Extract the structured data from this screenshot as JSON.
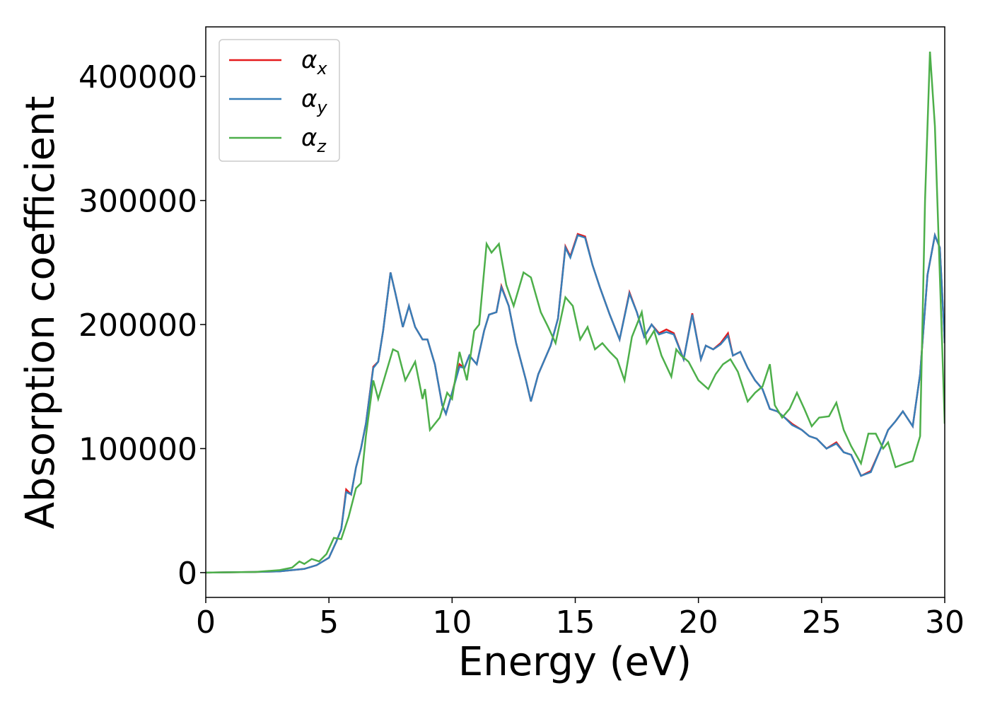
{
  "chart_data": {
    "type": "line",
    "xlabel": "Energy (eV)",
    "ylabel": "Absorption coefficient",
    "xlim": [
      0,
      30
    ],
    "ylim": [
      -20000,
      440000
    ],
    "xticks": [
      0,
      5,
      10,
      15,
      20,
      25,
      30
    ],
    "yticks": [
      0,
      100000,
      200000,
      300000,
      400000
    ],
    "legend": "upper left",
    "series": [
      {
        "name": "αx",
        "color": "#e41a1c",
        "x": [
          0,
          2,
          3,
          4,
          4.5,
          5,
          5.3,
          5.5,
          5.7,
          5.9,
          6.1,
          6.3,
          6.5,
          6.8,
          7,
          7.2,
          7.5,
          7.7,
          8,
          8.25,
          8.5,
          8.8,
          9,
          9.3,
          9.6,
          9.75,
          10,
          10.3,
          10.5,
          10.7,
          11,
          11.3,
          11.5,
          11.8,
          12,
          12.3,
          12.6,
          13,
          13.2,
          13.5,
          14,
          14.3,
          14.6,
          14.8,
          15.1,
          15.4,
          15.7,
          16,
          16.4,
          16.8,
          17.2,
          17.5,
          17.8,
          18.1,
          18.4,
          18.7,
          19,
          19.4,
          19.75,
          20.1,
          20.3,
          20.6,
          20.9,
          21.2,
          21.4,
          21.7,
          22,
          22.3,
          22.6,
          22.9,
          23.2,
          23.5,
          23.8,
          24.2,
          24.5,
          24.8,
          25.2,
          25.6,
          25.9,
          26.2,
          26.6,
          27,
          27.4,
          27.7,
          28,
          28.3,
          28.7,
          29,
          29.3,
          29.6,
          29.8,
          30
        ],
        "values": [
          0,
          500,
          1000,
          3000,
          6000,
          12000,
          25000,
          35000,
          67000,
          63000,
          85000,
          100000,
          120000,
          166000,
          170000,
          195000,
          242000,
          225000,
          198000,
          215000,
          198000,
          188000,
          188000,
          168000,
          135000,
          128000,
          145000,
          168000,
          165000,
          175000,
          168000,
          195000,
          208000,
          210000,
          231000,
          215000,
          185000,
          155000,
          138000,
          160000,
          183000,
          205000,
          263000,
          255000,
          273000,
          271000,
          248000,
          230000,
          208000,
          188000,
          226000,
          210000,
          190000,
          200000,
          193000,
          196000,
          193000,
          172000,
          209000,
          172000,
          183000,
          180000,
          185000,
          193000,
          175000,
          178000,
          165000,
          155000,
          148000,
          132000,
          130000,
          125000,
          120000,
          115000,
          110000,
          108000,
          100000,
          105000,
          97000,
          95000,
          78000,
          82000,
          100000,
          115000,
          122000,
          130000,
          118000,
          160000,
          240000,
          272000,
          262000,
          185000
        ]
      },
      {
        "name": "αy",
        "color": "#377eb8",
        "x": [
          0,
          2,
          3,
          4,
          4.5,
          5,
          5.3,
          5.5,
          5.7,
          5.9,
          6.1,
          6.3,
          6.5,
          6.8,
          7,
          7.2,
          7.5,
          7.7,
          8,
          8.25,
          8.5,
          8.8,
          9,
          9.3,
          9.6,
          9.75,
          10,
          10.3,
          10.5,
          10.7,
          11,
          11.3,
          11.5,
          11.8,
          12,
          12.3,
          12.6,
          13,
          13.2,
          13.5,
          14,
          14.3,
          14.6,
          14.8,
          15.1,
          15.4,
          15.7,
          16,
          16.4,
          16.8,
          17.2,
          17.5,
          17.8,
          18.1,
          18.4,
          18.7,
          19,
          19.4,
          19.75,
          20.1,
          20.3,
          20.6,
          20.9,
          21.2,
          21.4,
          21.7,
          22,
          22.3,
          22.6,
          22.9,
          23.2,
          23.5,
          23.8,
          24.2,
          24.5,
          24.8,
          25.2,
          25.6,
          25.9,
          26.2,
          26.6,
          27,
          27.4,
          27.7,
          28,
          28.3,
          28.7,
          29,
          29.3,
          29.6,
          29.8,
          30
        ],
        "values": [
          0,
          500,
          1000,
          3000,
          6000,
          12000,
          25000,
          35000,
          65000,
          63000,
          85000,
          100000,
          120000,
          165000,
          170000,
          195000,
          242000,
          225000,
          198000,
          215000,
          198000,
          188000,
          188000,
          168000,
          135000,
          128000,
          145000,
          166000,
          165000,
          175000,
          168000,
          195000,
          208000,
          210000,
          230000,
          215000,
          185000,
          155000,
          138000,
          160000,
          183000,
          205000,
          262000,
          254000,
          272000,
          270000,
          248000,
          230000,
          208000,
          188000,
          225000,
          210000,
          190000,
          200000,
          192000,
          194000,
          192000,
          172000,
          208000,
          172000,
          183000,
          180000,
          184000,
          191000,
          175000,
          178000,
          165000,
          155000,
          148000,
          132000,
          130000,
          125000,
          119000,
          115000,
          110000,
          108000,
          100000,
          104000,
          97000,
          95000,
          78000,
          81000,
          100000,
          115000,
          122000,
          130000,
          118000,
          160000,
          240000,
          272000,
          262000,
          185000
        ]
      },
      {
        "name": "αz",
        "color": "#4daf4a",
        "x": [
          0,
          2,
          3,
          3.5,
          3.8,
          4,
          4.3,
          4.6,
          4.9,
          5.2,
          5.5,
          5.8,
          6.1,
          6.3,
          6.5,
          6.8,
          7,
          7.3,
          7.6,
          7.8,
          8.1,
          8.5,
          8.8,
          8.9,
          9.1,
          9.5,
          9.8,
          10,
          10.3,
          10.6,
          10.9,
          11.1,
          11.4,
          11.6,
          11.9,
          12.2,
          12.5,
          12.9,
          13.2,
          13.6,
          13.9,
          14.2,
          14.6,
          14.9,
          15.2,
          15.5,
          15.8,
          16.1,
          16.4,
          16.7,
          17,
          17.3,
          17.7,
          17.9,
          18.2,
          18.5,
          18.9,
          19.1,
          19.3,
          19.6,
          20,
          20.4,
          20.7,
          21,
          21.3,
          21.6,
          22,
          22.3,
          22.6,
          22.9,
          23.1,
          23.4,
          23.7,
          24,
          24.3,
          24.6,
          24.9,
          25.3,
          25.6,
          25.9,
          26.2,
          26.6,
          26.9,
          27.2,
          27.5,
          27.7,
          28,
          28.4,
          28.7,
          29,
          29.2,
          29.4,
          29.6,
          29.8,
          30
        ],
        "values": [
          0,
          500,
          2000,
          4000,
          9000,
          7000,
          11000,
          9000,
          15000,
          28000,
          27000,
          45000,
          68000,
          72000,
          110000,
          155000,
          140000,
          160000,
          180000,
          178000,
          155000,
          170000,
          140000,
          148000,
          115000,
          125000,
          145000,
          140000,
          178000,
          155000,
          195000,
          200000,
          265000,
          258000,
          265000,
          232000,
          215000,
          242000,
          238000,
          210000,
          198000,
          185000,
          222000,
          215000,
          188000,
          198000,
          180000,
          185000,
          178000,
          172000,
          155000,
          190000,
          210000,
          185000,
          195000,
          175000,
          158000,
          180000,
          175000,
          170000,
          155000,
          148000,
          160000,
          168000,
          172000,
          162000,
          138000,
          145000,
          150000,
          168000,
          135000,
          125000,
          132000,
          145000,
          132000,
          118000,
          125000,
          126000,
          137000,
          115000,
          102000,
          88000,
          112000,
          112000,
          100000,
          105000,
          85000,
          88000,
          90000,
          110000,
          300000,
          420000,
          360000,
          240000,
          120000
        ]
      }
    ]
  }
}
